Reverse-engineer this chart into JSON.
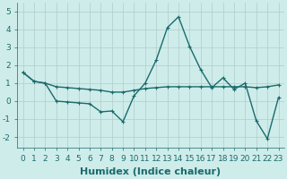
{
  "xlabel": "Humidex (Indice chaleur)",
  "background_color": "#ceecea",
  "grid_color": "#b0cccb",
  "line_color": "#1a6b6b",
  "x_line1": [
    0,
    1,
    2,
    3,
    4,
    5,
    6,
    7,
    8,
    9,
    10,
    11,
    12,
    13,
    14,
    15,
    16,
    17,
    18,
    19,
    20,
    21,
    22,
    23
  ],
  "y_line1": [
    1.6,
    1.1,
    1.0,
    0.8,
    0.75,
    0.7,
    0.65,
    0.6,
    0.5,
    0.5,
    0.6,
    0.7,
    0.75,
    0.8,
    0.8,
    0.8,
    0.8,
    0.8,
    0.8,
    0.8,
    0.8,
    0.75,
    0.8,
    0.9
  ],
  "x_line2": [
    0,
    1,
    2,
    3,
    4,
    5,
    6,
    7,
    8,
    9,
    10,
    11,
    12,
    13,
    14,
    15,
    16,
    17,
    18,
    19,
    20,
    21,
    22,
    23
  ],
  "y_line2": [
    1.6,
    1.1,
    1.0,
    0.0,
    -0.05,
    -0.1,
    -0.15,
    -0.6,
    -0.55,
    -1.15,
    0.3,
    1.0,
    2.3,
    4.1,
    4.7,
    3.05,
    1.75,
    0.75,
    1.3,
    0.65,
    1.0,
    -1.1,
    -2.1,
    0.2
  ],
  "ylim": [
    -2.6,
    5.5
  ],
  "yticks": [
    -2,
    -1,
    0,
    1,
    2,
    3,
    4,
    5
  ],
  "xticks": [
    0,
    1,
    2,
    3,
    4,
    5,
    6,
    7,
    8,
    9,
    10,
    11,
    12,
    13,
    14,
    15,
    16,
    17,
    18,
    19,
    20,
    21,
    22,
    23
  ],
  "tick_fontsize": 6.5,
  "xlabel_fontsize": 8
}
